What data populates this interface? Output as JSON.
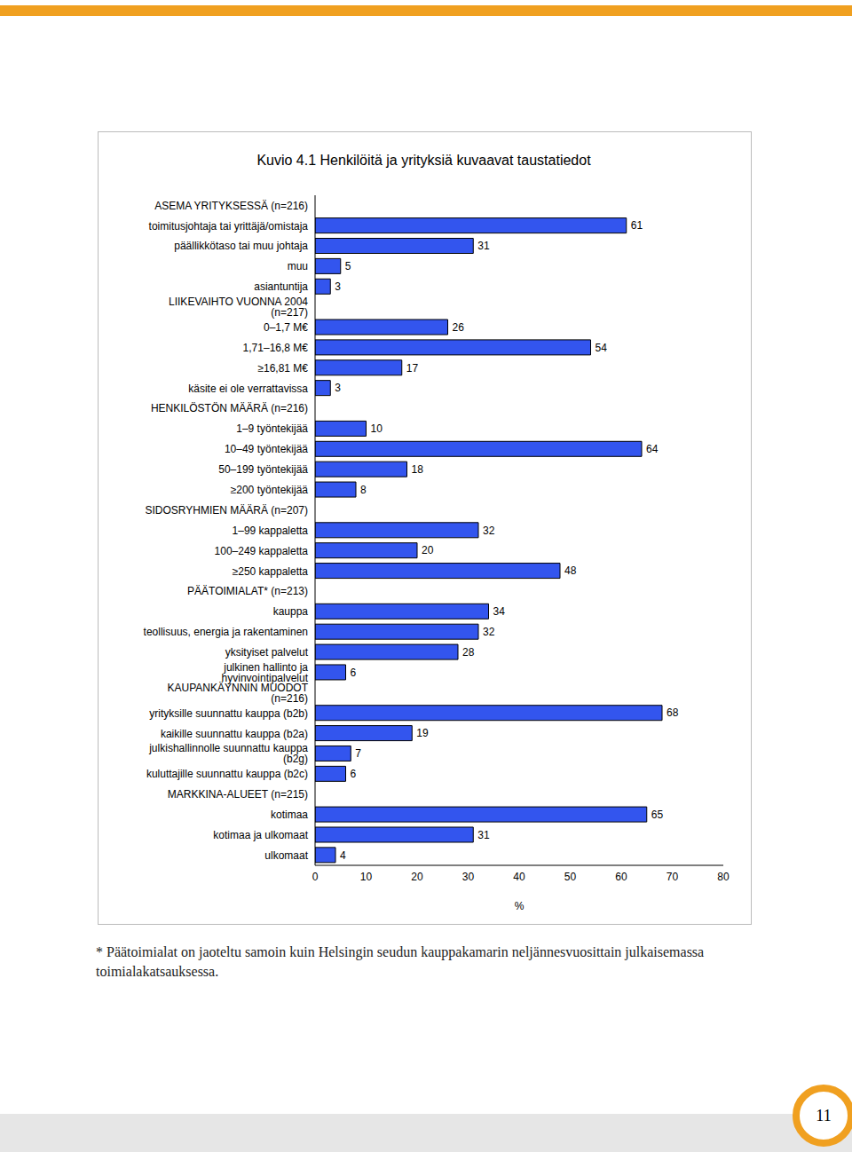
{
  "chart_data": {
    "type": "bar",
    "orientation": "horizontal",
    "title": "Kuvio 4.1 Henkilöitä ja yrityksiä kuvaavat taustatiedot",
    "x_label": "%",
    "categories": [
      "ASEMA YRITYKSESSÄ (n=216)",
      "toimitusjohtaja tai yrittäjä/omistaja",
      "päällikkötaso tai muu johtaja",
      "muu",
      "asiantuntija",
      "LIIKEVAIHTO VUONNA 2004 (n=217)",
      "0–1,7 M€",
      "1,71–16,8 M€",
      "≥16,81 M€",
      "käsite ei ole verrattavissa",
      "HENKILÖSTÖN MÄÄRÄ (n=216)",
      "1–9 työntekijää",
      "10–49 työntekijää",
      "50–199 työntekijää",
      "≥200 työntekijää",
      "SIDOSRYHMIEN MÄÄRÄ (n=207)",
      "1–99 kappaletta",
      "100–249 kappaletta",
      "≥250 kappaletta",
      "PÄÄTOIMIALAT* (n=213)",
      "kauppa",
      "teollisuus, energia ja rakentaminen",
      "yksityiset palvelut",
      "julkinen hallinto ja hyvinvointipalvelut",
      "KAUPANKÄYNNIN MUODOT (n=216)",
      "yrityksille suunnattu kauppa (b2b)",
      "kaikille suunnattu kauppa (b2a)",
      "julkishallinnolle suunnattu kauppa (b2g)",
      "kuluttajille suunnattu kauppa (b2c)",
      "MARKKINA-ALUEET (n=215)",
      "kotimaa",
      "kotimaa ja ulkomaat",
      "ulkomaat"
    ],
    "values": [
      null,
      61,
      31,
      5,
      3,
      null,
      26,
      54,
      17,
      3,
      null,
      10,
      64,
      18,
      8,
      null,
      32,
      20,
      48,
      null,
      34,
      32,
      28,
      6,
      null,
      68,
      19,
      7,
      6,
      null,
      65,
      31,
      4
    ],
    "color": "#3355ee",
    "xlim": [
      0,
      80
    ],
    "xticks": [
      0,
      10,
      20,
      30,
      40,
      50,
      60,
      70,
      80
    ],
    "grid": false,
    "data_labels": true
  },
  "footnote": "* Päätoimialat on jaoteltu samoin kuin Helsingin seudun kauppakamarin neljännesvuosittain julkaisemassa toimialakatsauksessa.",
  "page_number": "11"
}
